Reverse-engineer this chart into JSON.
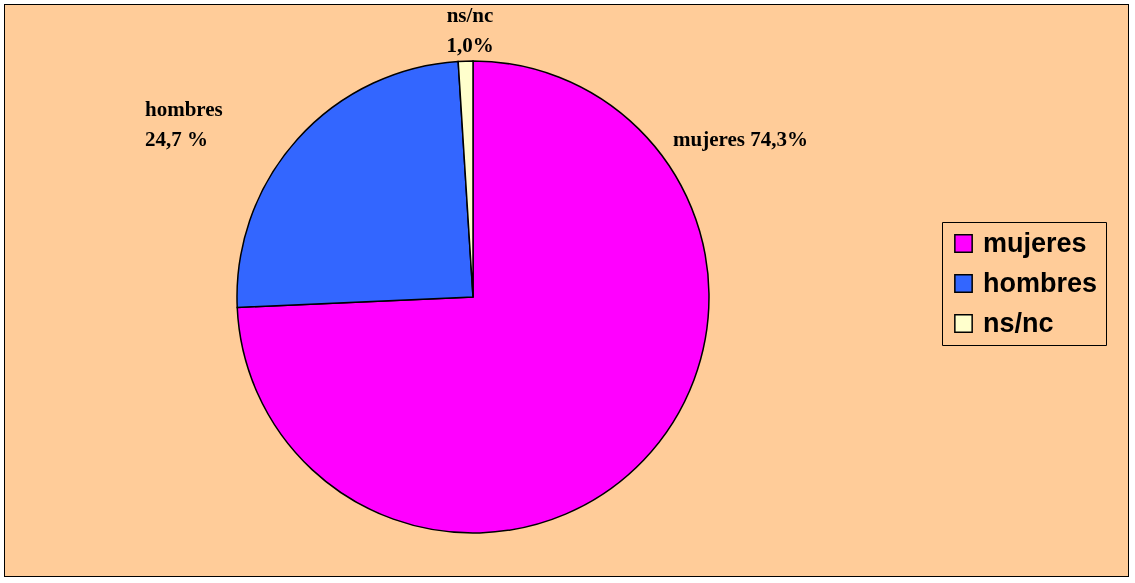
{
  "chart_data": {
    "type": "pie",
    "categories": [
      "mujeres",
      "hombres",
      "ns/nc"
    ],
    "values": [
      74.3,
      24.7,
      1.0
    ],
    "colors": [
      "#ff00ff",
      "#3366ff",
      "#ffffcc"
    ],
    "value_labels": [
      "74,3%",
      "24,7 %",
      "1,0%"
    ],
    "legend": "right"
  }
}
